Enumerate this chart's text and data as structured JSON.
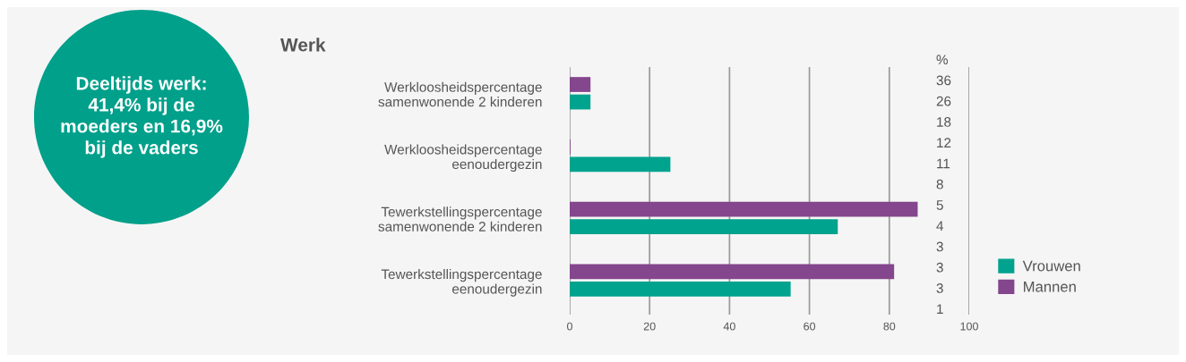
{
  "chart_data": {
    "type": "bar",
    "orientation": "horizontal",
    "title": "Werk",
    "categories": [
      "Werkloosheidspercentage\nsamenwonende 2 kinderen",
      "Werkloosheidspercentage\neenoudergezin",
      "Tewerkstellingspercentage\nsamenwonende 2 kinderen",
      "Tewerkstellingspercentage\neenoudergezin"
    ],
    "series": [
      {
        "name": "Vrouwen",
        "color": "#00a38e",
        "values": [
          5.2,
          25.2,
          67.1,
          55.3
        ]
      },
      {
        "name": "Mannen",
        "color": "#84468c",
        "values": [
          5.2,
          0.2,
          87.1,
          81.2
        ]
      }
    ],
    "xlim": [
      0,
      100
    ],
    "xticks": [
      0,
      20,
      40,
      60,
      80,
      100
    ],
    "grid": "x",
    "legend": "right",
    "annotations": [
      "Deeltijds werk:\n41,4% bij de\nmoeders en 16,9%\nbij de vaders",
      "%",
      "36",
      "26",
      "18",
      "12",
      "11",
      "8",
      "5",
      "4",
      "3",
      "3",
      "3",
      "1"
    ]
  }
}
